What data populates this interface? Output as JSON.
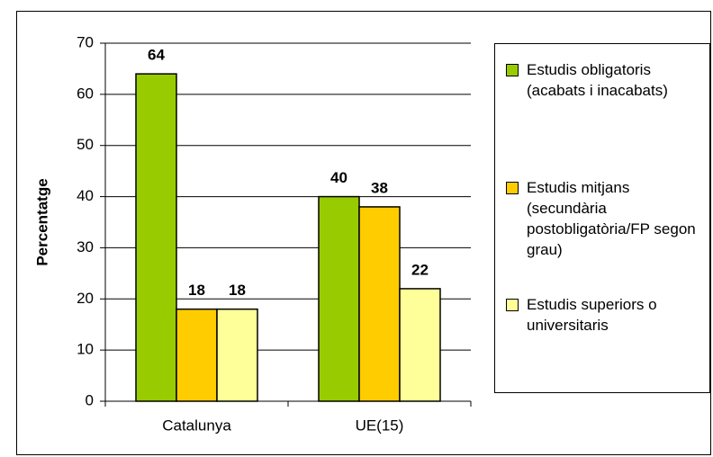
{
  "chart_data": {
    "type": "bar",
    "categories": [
      "Catalunya",
      "UE(15)"
    ],
    "series": [
      {
        "name": "Estudis obligatoris (acabats i inacabats)",
        "color": "#99cc00",
        "values": [
          64,
          40
        ]
      },
      {
        "name": "Estudis mitjans (secundària postobligatòria/FP segon grau)",
        "color": "#ffcc00",
        "values": [
          18,
          38
        ]
      },
      {
        "name": "Estudis superiors o universitaris",
        "color": "#ffff99",
        "values": [
          18,
          22
        ]
      }
    ],
    "ylabel": "Percentatge",
    "ylim": [
      0,
      70
    ],
    "yticks": [
      0,
      10,
      20,
      30,
      40,
      50,
      60,
      70
    ],
    "grid": true,
    "legend": "right"
  }
}
